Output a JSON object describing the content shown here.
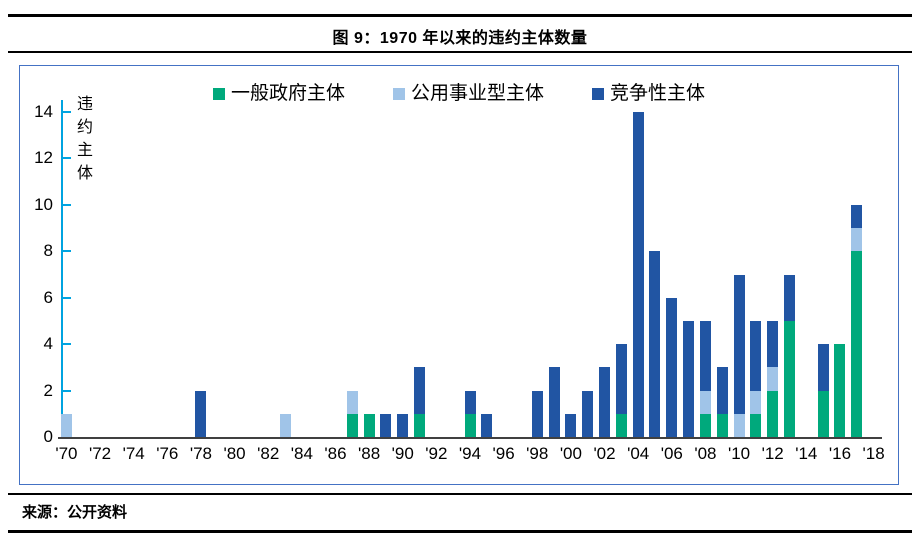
{
  "figure": {
    "title": "图 9：1970 年以来的违约主体数量",
    "source": "来源：公开资料"
  },
  "panel": {
    "border_color": "#4472C4",
    "rule_color": "#000000"
  },
  "chart_data": {
    "type": "bar",
    "stacked": true,
    "title": "图 9：1970 年以来的违约主体数量",
    "ylabel": "违约主体",
    "xlabel": "",
    "ylim": [
      0,
      14
    ],
    "y_ticks": [
      0,
      2,
      4,
      6,
      8,
      10,
      12,
      14
    ],
    "grid": false,
    "legend_position": "top-center",
    "y_axis_color": "#00A3E0",
    "x_axis_color": "#404040",
    "years": [
      1970,
      1971,
      1972,
      1973,
      1974,
      1975,
      1976,
      1977,
      1978,
      1979,
      1980,
      1981,
      1982,
      1983,
      1984,
      1985,
      1986,
      1987,
      1988,
      1989,
      1990,
      1991,
      1992,
      1993,
      1994,
      1995,
      1996,
      1997,
      1998,
      1999,
      2000,
      2001,
      2002,
      2003,
      2004,
      2005,
      2006,
      2007,
      2008,
      2009,
      2010,
      2011,
      2012,
      2013,
      2014,
      2015,
      2016,
      2017,
      2018
    ],
    "x_tick_labels": [
      "'70",
      "'72",
      "'74",
      "'76",
      "'78",
      "'80",
      "'82",
      "'84",
      "'86",
      "'88",
      "'90",
      "'92",
      "'94",
      "'96",
      "'98",
      "'00",
      "'02",
      "'04",
      "'06",
      "'08",
      "'10",
      "'12",
      "'14",
      "'16",
      "'18"
    ],
    "x_tick_every": 2,
    "series": [
      {
        "key": "general-government",
        "name": "一般政府主体",
        "color": "#00A97C",
        "values": [
          0,
          0,
          0,
          0,
          0,
          0,
          0,
          0,
          0,
          0,
          0,
          0,
          0,
          0,
          0,
          0,
          0,
          1,
          1,
          0,
          0,
          1,
          0,
          0,
          1,
          0,
          0,
          0,
          0,
          0,
          0,
          0,
          0,
          1,
          0,
          0,
          0,
          0,
          1,
          1,
          0,
          1,
          2,
          5,
          0,
          2,
          4,
          8,
          0
        ]
      },
      {
        "key": "public-utility",
        "name": "公用事业型主体",
        "color": "#A0C4E8",
        "values": [
          1,
          0,
          0,
          0,
          0,
          0,
          0,
          0,
          0,
          0,
          0,
          0,
          0,
          1,
          0,
          0,
          0,
          1,
          0,
          0,
          0,
          0,
          0,
          0,
          0,
          0,
          0,
          0,
          0,
          0,
          0,
          0,
          0,
          0,
          0,
          0,
          0,
          0,
          1,
          0,
          1,
          1,
          1,
          0,
          0,
          0,
          0,
          1,
          0
        ]
      },
      {
        "key": "competitive",
        "name": "竞争性主体",
        "color": "#2155A3",
        "values": [
          0,
          0,
          0,
          0,
          0,
          0,
          0,
          0,
          2,
          0,
          0,
          0,
          0,
          0,
          0,
          0,
          0,
          0,
          0,
          1,
          1,
          2,
          0,
          0,
          1,
          1,
          0,
          0,
          2,
          3,
          1,
          2,
          3,
          3,
          14,
          8,
          6,
          5,
          3,
          2,
          6,
          3,
          2,
          2,
          0,
          2,
          0,
          1,
          0
        ]
      }
    ]
  }
}
